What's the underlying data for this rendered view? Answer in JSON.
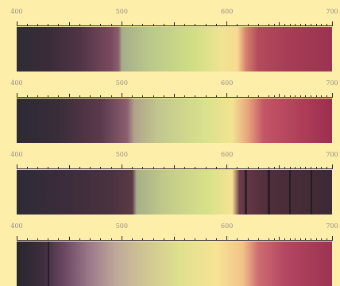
{
  "scale": {
    "min_nm": 400,
    "max_nm": 700,
    "labels": [
      "400",
      "500",
      "600",
      "700"
    ]
  },
  "spectra": [
    {
      "stops": [
        [
          400,
          "#2e2c36"
        ],
        [
          430,
          "#3a2c38"
        ],
        [
          460,
          "#4f3446"
        ],
        [
          490,
          "#7a4a5e"
        ],
        [
          497,
          "#8a5f6d"
        ],
        [
          500,
          "#a6ad8a"
        ],
        [
          525,
          "#b9c78c"
        ],
        [
          570,
          "#d2df84"
        ],
        [
          595,
          "#efe493"
        ],
        [
          610,
          "#f7da8f"
        ],
        [
          618,
          "#d9806f"
        ],
        [
          630,
          "#b34a5c"
        ],
        [
          660,
          "#a63c55"
        ],
        [
          700,
          "#9b3451"
        ]
      ],
      "dark_bands": []
    },
    {
      "stops": [
        [
          400,
          "#2c2a35"
        ],
        [
          440,
          "#3a2d3a"
        ],
        [
          480,
          "#5b394d"
        ],
        [
          505,
          "#8b5f70"
        ],
        [
          512,
          "#b0a38a"
        ],
        [
          535,
          "#c2c78f"
        ],
        [
          580,
          "#d9e28c"
        ],
        [
          605,
          "#f3e391"
        ],
        [
          620,
          "#e8a47f"
        ],
        [
          635,
          "#c35565"
        ],
        [
          670,
          "#b03e5a"
        ],
        [
          700,
          "#9a2f4e"
        ]
      ],
      "dark_bands": []
    },
    {
      "stops": [
        [
          400,
          "#2e2b36"
        ],
        [
          450,
          "#3d2d3c"
        ],
        [
          490,
          "#4a3240"
        ],
        [
          510,
          "#5a3a45"
        ],
        [
          514,
          "#a6ae88"
        ],
        [
          540,
          "#c1c98a"
        ],
        [
          585,
          "#dae389"
        ],
        [
          605,
          "#f6e293"
        ],
        [
          612,
          "#6a3a48"
        ],
        [
          640,
          "#4e2e3a"
        ],
        [
          700,
          "#3c2a34"
        ]
      ],
      "dark_bands": [
        {
          "nm": 618,
          "width_nm": 2
        },
        {
          "nm": 640,
          "width_nm": 2.5
        },
        {
          "nm": 660,
          "width_nm": 2
        },
        {
          "nm": 680,
          "width_nm": 1.5
        }
      ]
    },
    {
      "stops": [
        [
          400,
          "#28262f"
        ],
        [
          425,
          "#3d2e3d"
        ],
        [
          445,
          "#6a4763"
        ],
        [
          470,
          "#9f7a8c"
        ],
        [
          495,
          "#bfa99a"
        ],
        [
          520,
          "#cfc394"
        ],
        [
          555,
          "#dfe08f"
        ],
        [
          590,
          "#f6e494"
        ],
        [
          615,
          "#f2c389"
        ],
        [
          630,
          "#cd6c72"
        ],
        [
          655,
          "#b44762"
        ],
        [
          700,
          "#9c3352"
        ]
      ],
      "dark_bands": [
        {
          "nm": 430,
          "width_nm": 1.5
        }
      ]
    }
  ]
}
